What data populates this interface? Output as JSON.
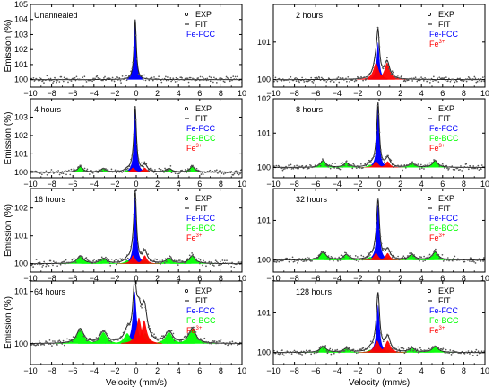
{
  "figure": {
    "y_axis_label": "Emission (%)",
    "x_axis_label": "Velocity (mm/s)",
    "colors": {
      "exp_points": "#555555",
      "fit_line": "#222222",
      "fe_fcc": "#0000ff",
      "fe_bcc": "#00ff00",
      "fe3": "#ff0000",
      "axes": "#000000"
    }
  },
  "chart_data": [
    {
      "type": "scatter",
      "panel_label": "Unannealed",
      "xlim": [
        -10,
        10
      ],
      "ylim": [
        99.5,
        105
      ],
      "xticks": [
        -10,
        -8,
        -6,
        -4,
        -2,
        0,
        2,
        4,
        6,
        8,
        10
      ],
      "yticks": [
        100,
        101,
        102,
        103,
        104,
        105
      ],
      "ylabel": "Emission (%)",
      "xlabel": "",
      "legend": [
        "EXP",
        "FIT",
        "Fe-FCC"
      ],
      "baseline": 100,
      "components": [
        {
          "name": "Fe-FCC",
          "center": -0.1,
          "hwhm": 0.13,
          "amplitude": 4.0
        }
      ]
    },
    {
      "type": "scatter",
      "panel_label": "2 hours",
      "xlim": [
        -10,
        10
      ],
      "ylim": [
        99.8,
        102
      ],
      "xticks": [
        -10,
        -8,
        -6,
        -4,
        -2,
        0,
        2,
        4,
        6,
        8,
        10
      ],
      "yticks": [
        100,
        101
      ],
      "ylabel": "",
      "xlabel": "",
      "legend": [
        "EXP",
        "FIT",
        "Fe-FCC",
        "Fe3+"
      ],
      "baseline": 100,
      "components": [
        {
          "name": "Fe-FCC",
          "center": -0.1,
          "hwhm": 0.15,
          "amplitude": 1.0
        },
        {
          "name": "Fe3+",
          "center": -0.3,
          "hwhm": 0.3,
          "amplitude": 0.45
        },
        {
          "name": "Fe3+",
          "center": 0.75,
          "hwhm": 0.3,
          "amplitude": 0.45
        }
      ]
    },
    {
      "type": "scatter",
      "panel_label": "4 hours",
      "xlim": [
        -10,
        10
      ],
      "ylim": [
        99.7,
        104
      ],
      "xticks": [
        -10,
        -8,
        -6,
        -4,
        -2,
        0,
        2,
        4,
        6,
        8,
        10
      ],
      "yticks": [
        100,
        101,
        102,
        103
      ],
      "ylabel": "Emission (%)",
      "xlabel": "",
      "legend": [
        "EXP",
        "FIT",
        "Fe-FCC",
        "Fe-BCC",
        "Fe3+"
      ],
      "baseline": 100,
      "components": [
        {
          "name": "Fe-FCC",
          "center": -0.1,
          "hwhm": 0.14,
          "amplitude": 3.4
        },
        {
          "name": "Fe-BCC",
          "center": -5.3,
          "hwhm": 0.3,
          "amplitude": 0.3
        },
        {
          "name": "Fe-BCC",
          "center": -3.1,
          "hwhm": 0.3,
          "amplitude": 0.2
        },
        {
          "name": "Fe-BCC",
          "center": -0.85,
          "hwhm": 0.3,
          "amplitude": 0.12
        },
        {
          "name": "Fe-BCC",
          "center": 0.85,
          "hwhm": 0.3,
          "amplitude": 0.12
        },
        {
          "name": "Fe-BCC",
          "center": 3.1,
          "hwhm": 0.3,
          "amplitude": 0.2
        },
        {
          "name": "Fe-BCC",
          "center": 5.3,
          "hwhm": 0.3,
          "amplitude": 0.3
        },
        {
          "name": "Fe3+",
          "center": -0.3,
          "hwhm": 0.25,
          "amplitude": 0.25
        },
        {
          "name": "Fe3+",
          "center": 0.8,
          "hwhm": 0.25,
          "amplitude": 0.25
        }
      ]
    },
    {
      "type": "scatter",
      "panel_label": "8 hours",
      "xlim": [
        -10,
        10
      ],
      "ylim": [
        99.7,
        102
      ],
      "xticks": [
        -10,
        -8,
        -6,
        -4,
        -2,
        0,
        2,
        4,
        6,
        8,
        10
      ],
      "yticks": [
        100,
        101,
        102
      ],
      "ylabel": "",
      "xlabel": "",
      "legend": [
        "EXP",
        "FIT",
        "Fe-FCC",
        "Fe-BCC",
        "Fe3+"
      ],
      "baseline": 100,
      "components": [
        {
          "name": "Fe-FCC",
          "center": -0.1,
          "hwhm": 0.14,
          "amplitude": 1.75
        },
        {
          "name": "Fe-BCC",
          "center": -5.3,
          "hwhm": 0.3,
          "amplitude": 0.2
        },
        {
          "name": "Fe-BCC",
          "center": -3.1,
          "hwhm": 0.3,
          "amplitude": 0.13
        },
        {
          "name": "Fe-BCC",
          "center": -0.85,
          "hwhm": 0.3,
          "amplitude": 0.08
        },
        {
          "name": "Fe-BCC",
          "center": 0.85,
          "hwhm": 0.3,
          "amplitude": 0.08
        },
        {
          "name": "Fe-BCC",
          "center": 3.1,
          "hwhm": 0.3,
          "amplitude": 0.13
        },
        {
          "name": "Fe-BCC",
          "center": 5.3,
          "hwhm": 0.3,
          "amplitude": 0.2
        },
        {
          "name": "Fe3+",
          "center": -0.3,
          "hwhm": 0.25,
          "amplitude": 0.18
        },
        {
          "name": "Fe3+",
          "center": 0.8,
          "hwhm": 0.25,
          "amplitude": 0.18
        }
      ]
    },
    {
      "type": "scatter",
      "panel_label": "16 hours",
      "xlim": [
        -10,
        10
      ],
      "ylim": [
        99.7,
        102.7
      ],
      "xticks": [
        -10,
        -8,
        -6,
        -4,
        -2,
        0,
        2,
        4,
        6,
        8,
        10
      ],
      "yticks": [
        100,
        101,
        102
      ],
      "ylabel": "Emission (%)",
      "xlabel": "",
      "legend": [
        "EXP",
        "FIT",
        "Fe-FCC",
        "Fe-BCC",
        "Fe3+"
      ],
      "baseline": 100,
      "components": [
        {
          "name": "Fe-FCC",
          "center": -0.1,
          "hwhm": 0.15,
          "amplitude": 2.4
        },
        {
          "name": "Fe-BCC",
          "center": -5.3,
          "hwhm": 0.35,
          "amplitude": 0.28
        },
        {
          "name": "Fe-BCC",
          "center": -3.1,
          "hwhm": 0.35,
          "amplitude": 0.18
        },
        {
          "name": "Fe-BCC",
          "center": -0.85,
          "hwhm": 0.3,
          "amplitude": 0.12
        },
        {
          "name": "Fe-BCC",
          "center": 0.85,
          "hwhm": 0.3,
          "amplitude": 0.12
        },
        {
          "name": "Fe-BCC",
          "center": 3.1,
          "hwhm": 0.35,
          "amplitude": 0.18
        },
        {
          "name": "Fe-BCC",
          "center": 5.3,
          "hwhm": 0.35,
          "amplitude": 0.28
        },
        {
          "name": "Fe3+",
          "center": -0.3,
          "hwhm": 0.25,
          "amplitude": 0.3
        },
        {
          "name": "Fe3+",
          "center": 0.8,
          "hwhm": 0.25,
          "amplitude": 0.3
        }
      ]
    },
    {
      "type": "scatter",
      "panel_label": "32 hours",
      "xlim": [
        -10,
        10
      ],
      "ylim": [
        99.7,
        101.8
      ],
      "xticks": [
        -10,
        -8,
        -6,
        -4,
        -2,
        0,
        2,
        4,
        6,
        8,
        10
      ],
      "yticks": [
        100,
        101
      ],
      "ylabel": "",
      "xlabel": "",
      "legend": [
        "EXP",
        "FIT",
        "Fe-FCC",
        "Fe-BCC",
        "Fe3+"
      ],
      "baseline": 100,
      "components": [
        {
          "name": "Fe-FCC",
          "center": -0.1,
          "hwhm": 0.16,
          "amplitude": 1.4
        },
        {
          "name": "Fe-BCC",
          "center": -5.3,
          "hwhm": 0.35,
          "amplitude": 0.2
        },
        {
          "name": "Fe-BCC",
          "center": -3.1,
          "hwhm": 0.35,
          "amplitude": 0.13
        },
        {
          "name": "Fe-BCC",
          "center": -0.85,
          "hwhm": 0.3,
          "amplitude": 0.08
        },
        {
          "name": "Fe-BCC",
          "center": 0.85,
          "hwhm": 0.3,
          "amplitude": 0.08
        },
        {
          "name": "Fe-BCC",
          "center": 3.1,
          "hwhm": 0.35,
          "amplitude": 0.13
        },
        {
          "name": "Fe-BCC",
          "center": 5.3,
          "hwhm": 0.35,
          "amplitude": 0.2
        },
        {
          "name": "Fe3+",
          "center": -0.3,
          "hwhm": 0.25,
          "amplitude": 0.18
        },
        {
          "name": "Fe3+",
          "center": 0.8,
          "hwhm": 0.25,
          "amplitude": 0.18
        }
      ]
    },
    {
      "type": "scatter",
      "panel_label": "64 hours",
      "xlim": [
        -10,
        10
      ],
      "ylim": [
        99.6,
        101.2
      ],
      "xticks": [
        -10,
        -8,
        -6,
        -4,
        -2,
        0,
        2,
        4,
        6,
        8,
        10
      ],
      "yticks": [
        100,
        101
      ],
      "ylabel": "Emission (%)",
      "xlabel": "Velocity (mm/s)",
      "legend": [
        "EXP",
        "FIT",
        "Fe-FCC",
        "Fe-BCC",
        "Fe3+"
      ],
      "baseline": 100,
      "components": [
        {
          "name": "Fe-FCC",
          "center": -0.15,
          "hwhm": 0.2,
          "amplitude": 1.0
        },
        {
          "name": "Fe-BCC",
          "center": -5.3,
          "hwhm": 0.4,
          "amplitude": 0.28
        },
        {
          "name": "Fe-BCC",
          "center": -3.1,
          "hwhm": 0.4,
          "amplitude": 0.22
        },
        {
          "name": "Fe-BCC",
          "center": -0.85,
          "hwhm": 0.35,
          "amplitude": 0.2
        },
        {
          "name": "Fe-BCC",
          "center": 0.85,
          "hwhm": 0.35,
          "amplitude": 0.2
        },
        {
          "name": "Fe-BCC",
          "center": 3.1,
          "hwhm": 0.4,
          "amplitude": 0.22
        },
        {
          "name": "Fe-BCC",
          "center": 5.3,
          "hwhm": 0.4,
          "amplitude": 0.28
        },
        {
          "name": "Fe3+",
          "center": 0.25,
          "hwhm": 0.28,
          "amplitude": 0.5
        },
        {
          "name": "Fe3+",
          "center": 0.75,
          "hwhm": 0.28,
          "amplitude": 0.45
        }
      ]
    },
    {
      "type": "scatter",
      "panel_label": "128 hours",
      "xlim": [
        -10,
        10
      ],
      "ylim": [
        99.7,
        101.8
      ],
      "xticks": [
        -10,
        -8,
        -6,
        -4,
        -2,
        0,
        2,
        4,
        6,
        8,
        10
      ],
      "yticks": [
        100,
        101
      ],
      "ylabel": "",
      "xlabel": "Velocity (mm/s)",
      "legend": [
        "EXP",
        "FIT",
        "Fe-FCC",
        "Fe-BCC",
        "Fe3+"
      ],
      "baseline": 100,
      "components": [
        {
          "name": "Fe-FCC",
          "center": -0.1,
          "hwhm": 0.17,
          "amplitude": 1.2
        },
        {
          "name": "Fe-BCC",
          "center": -5.3,
          "hwhm": 0.35,
          "amplitude": 0.15
        },
        {
          "name": "Fe-BCC",
          "center": -3.1,
          "hwhm": 0.35,
          "amplitude": 0.1
        },
        {
          "name": "Fe-BCC",
          "center": -0.85,
          "hwhm": 0.3,
          "amplitude": 0.07
        },
        {
          "name": "Fe-BCC",
          "center": 0.85,
          "hwhm": 0.3,
          "amplitude": 0.07
        },
        {
          "name": "Fe-BCC",
          "center": 3.1,
          "hwhm": 0.35,
          "amplitude": 0.1
        },
        {
          "name": "Fe-BCC",
          "center": 5.3,
          "hwhm": 0.35,
          "amplitude": 0.15
        },
        {
          "name": "Fe3+",
          "center": -0.2,
          "hwhm": 0.3,
          "amplitude": 0.3
        },
        {
          "name": "Fe3+",
          "center": 0.8,
          "hwhm": 0.3,
          "amplitude": 0.3
        }
      ]
    }
  ]
}
